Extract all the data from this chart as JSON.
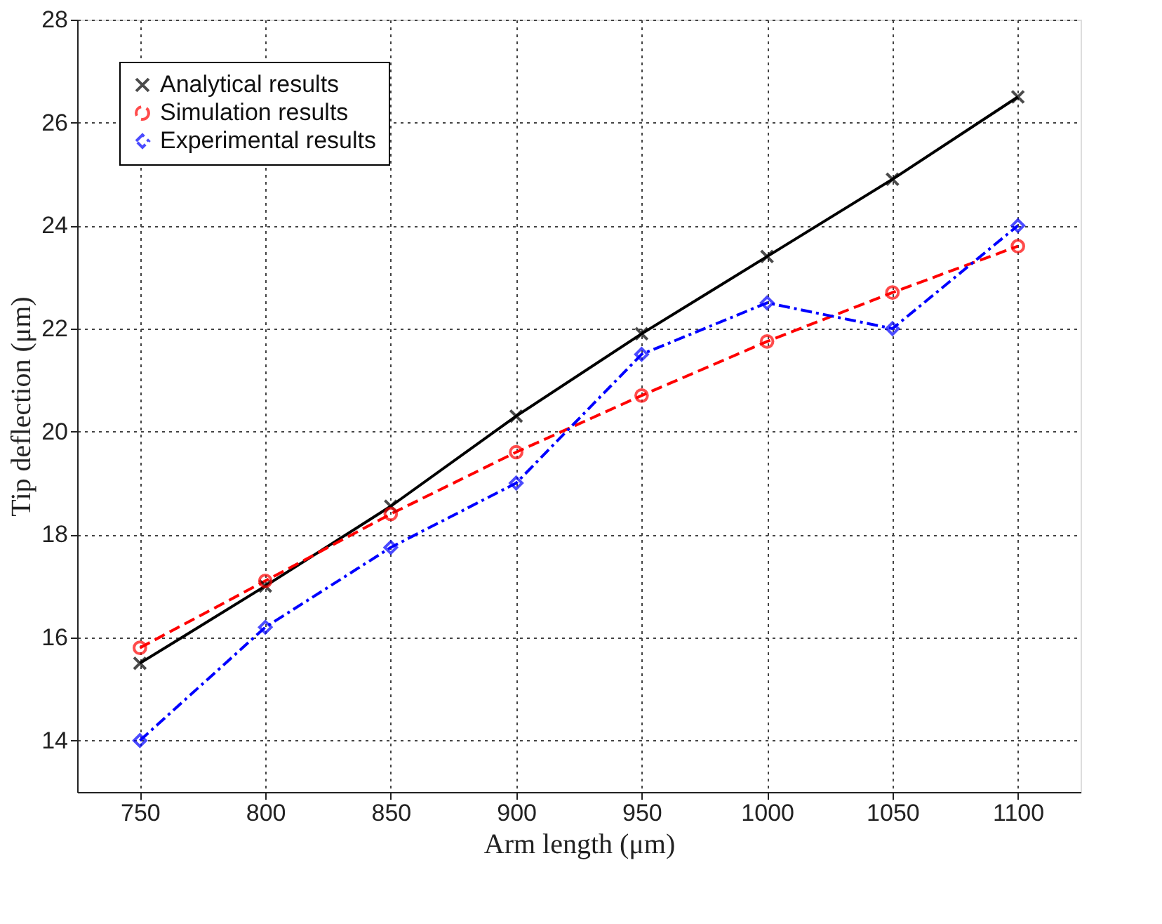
{
  "chart_data": {
    "type": "line",
    "xlabel": "Arm length (μm)",
    "ylabel": "Tip deflection (μm)",
    "x": [
      750,
      800,
      850,
      900,
      950,
      1000,
      1050,
      1100
    ],
    "series": [
      {
        "name": "Analytical results",
        "color": "#000000",
        "marker": "cross",
        "line_style": "solid",
        "values": [
          15.5,
          17.0,
          18.55,
          20.3,
          21.9,
          23.4,
          24.9,
          26.5
        ]
      },
      {
        "name": "Simulation results",
        "color": "#ff0000",
        "marker": "circle",
        "line_style": "dashed",
        "values": [
          15.8,
          17.1,
          18.4,
          19.6,
          20.7,
          21.75,
          22.7,
          23.6
        ]
      },
      {
        "name": "Experimental results",
        "color": "#0000ff",
        "marker": "diamond",
        "line_style": "dashdot",
        "values": [
          14.0,
          16.2,
          17.75,
          19.0,
          21.5,
          22.5,
          22.0,
          24.0
        ]
      }
    ],
    "xlim": [
      725,
      1125
    ],
    "xticks": [
      750,
      800,
      850,
      900,
      950,
      1000,
      1050,
      1100
    ],
    "ylim": [
      13,
      28
    ],
    "yticks": [
      14,
      16,
      18,
      20,
      22,
      24,
      26,
      28
    ],
    "grid": true,
    "legend": "top left"
  }
}
